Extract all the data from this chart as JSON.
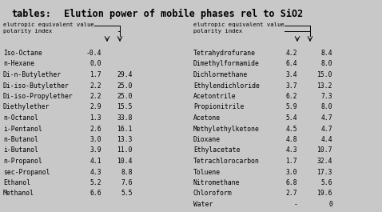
{
  "title": "Elution power of mobile phases rel to SiO2",
  "title_prefix": "tables:",
  "bg_color": "#c8c8c8",
  "left_table": {
    "compounds": [
      "Iso-Octane",
      "n-Hexane",
      "Di-n-Butylether",
      "Di-iso-Butylether",
      "Di-iso-Propylether",
      "Diethylether",
      "n-Octanol",
      "i-Pentanol",
      "n-Butanol",
      "i-Butanol",
      "n-Propanol",
      "sec-Propanol",
      "Ethanol",
      "Methanol"
    ],
    "col1": [
      "-0.4",
      "0.0",
      "1.7",
      "2.2",
      "2.2",
      "2.9",
      "1.3",
      "2.6",
      "3.0",
      "3.9",
      "4.1",
      "4.3",
      "5.2",
      "6.6"
    ],
    "col2": [
      "",
      "",
      "29.4",
      "25.0",
      "25.0",
      "15.5",
      "33.8",
      "16.1",
      "13.3",
      "11.0",
      "10.4",
      "8.8",
      "7.6",
      "5.5"
    ]
  },
  "right_table": {
    "compounds": [
      "Tetrahydrofurane",
      "Dimethylformamide",
      "Dichlormethane",
      "Ethylendichloride",
      "Acetontrile",
      "Propionitrile",
      "Acetone",
      "Methylethylketone",
      "Dioxane",
      "Ethylacetate",
      "Tetrachlorocarbon",
      "Toluene",
      "Nitromethane",
      "Chloroform",
      "Water"
    ],
    "col1": [
      "4.2",
      "6.4",
      "3.4",
      "3.7",
      "6.2",
      "5.9",
      "5.4",
      "4.5",
      "4.8",
      "4.3",
      "1.7",
      "3.0",
      "6.8",
      "2.7",
      "-"
    ],
    "col2": [
      "8.4",
      "8.0",
      "15.0",
      "13.2",
      "7.3",
      "8.0",
      "4.7",
      "4.7",
      "4.4",
      "10.7",
      "32.4",
      "17.3",
      "5.6",
      "19.6",
      "0"
    ]
  }
}
